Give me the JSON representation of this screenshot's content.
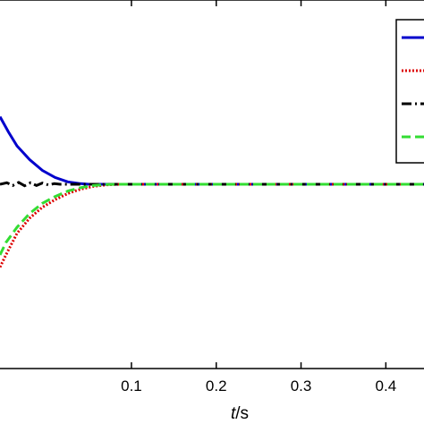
{
  "chart_data": {
    "type": "line",
    "xlabel_italic": "t",
    "xlabel_unit": "/s",
    "xlim": [
      -0.055,
      0.445
    ],
    "ylim": [
      -0.6,
      0.6
    ],
    "xticks": [
      0.1,
      0.2,
      0.3,
      0.4
    ],
    "xtick_labels": [
      "0.1",
      "0.2",
      "0.3",
      "0.4"
    ],
    "grid": false,
    "legend_position": "top-right",
    "series": [
      {
        "color": "#0000cc",
        "style": "solid",
        "points": [
          [
            -0.055,
            0.22
          ],
          [
            -0.045,
            0.17
          ],
          [
            -0.035,
            0.125
          ],
          [
            -0.02,
            0.08
          ],
          [
            -0.005,
            0.045
          ],
          [
            0.01,
            0.022
          ],
          [
            0.025,
            0.008
          ],
          [
            0.04,
            0.002
          ],
          [
            0.05,
            0.0
          ],
          [
            0.445,
            0.0
          ]
        ]
      },
      {
        "color": "#dd0000",
        "style": "dotted",
        "points": [
          [
            -0.055,
            -0.27
          ],
          [
            -0.048,
            -0.23
          ],
          [
            -0.035,
            -0.16
          ],
          [
            -0.02,
            -0.11
          ],
          [
            -0.005,
            -0.075
          ],
          [
            0.01,
            -0.05
          ],
          [
            0.025,
            -0.03
          ],
          [
            0.04,
            -0.016
          ],
          [
            0.055,
            -0.007
          ],
          [
            0.07,
            -0.002
          ],
          [
            0.085,
            0.0
          ],
          [
            0.445,
            0.0
          ]
        ]
      },
      {
        "color": "#000000",
        "style": "dash-dot",
        "points": [
          [
            -0.055,
            0.0
          ],
          [
            -0.047,
            0.005
          ],
          [
            -0.04,
            -0.004
          ],
          [
            -0.033,
            0.006
          ],
          [
            -0.026,
            -0.005
          ],
          [
            -0.019,
            0.005
          ],
          [
            -0.012,
            -0.004
          ],
          [
            -0.005,
            0.004
          ],
          [
            0.002,
            -0.002
          ],
          [
            0.009,
            0.002
          ],
          [
            0.016,
            0.0
          ],
          [
            0.445,
            0.0
          ]
        ]
      },
      {
        "color": "#33dd33",
        "style": "dashed",
        "points": [
          [
            -0.055,
            -0.23
          ],
          [
            -0.048,
            -0.19
          ],
          [
            -0.035,
            -0.14
          ],
          [
            -0.02,
            -0.095
          ],
          [
            -0.005,
            -0.062
          ],
          [
            0.01,
            -0.04
          ],
          [
            0.025,
            -0.022
          ],
          [
            0.04,
            -0.011
          ],
          [
            0.055,
            -0.004
          ],
          [
            0.07,
            -0.001
          ],
          [
            0.085,
            0.0
          ],
          [
            0.445,
            0.0
          ]
        ]
      }
    ]
  }
}
